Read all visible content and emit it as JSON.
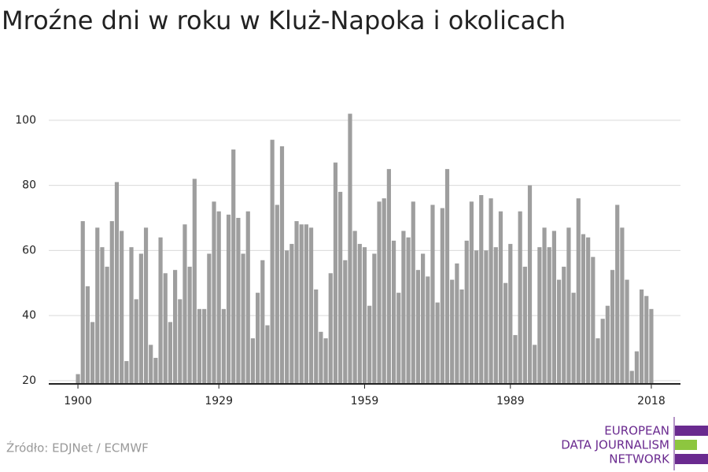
{
  "chart_data": {
    "type": "bar",
    "title": "Mroźne dni w roku w Kluż-Napoka i okolicach",
    "x": [
      1900,
      1901,
      1902,
      1903,
      1904,
      1905,
      1906,
      1907,
      1908,
      1909,
      1910,
      1911,
      1912,
      1913,
      1914,
      1915,
      1916,
      1917,
      1918,
      1919,
      1920,
      1921,
      1922,
      1923,
      1924,
      1925,
      1926,
      1927,
      1928,
      1929,
      1930,
      1931,
      1932,
      1933,
      1934,
      1935,
      1936,
      1937,
      1938,
      1939,
      1940,
      1941,
      1942,
      1943,
      1944,
      1945,
      1946,
      1947,
      1948,
      1949,
      1950,
      1951,
      1952,
      1953,
      1954,
      1955,
      1956,
      1957,
      1958,
      1959,
      1960,
      1961,
      1962,
      1963,
      1964,
      1965,
      1966,
      1967,
      1968,
      1969,
      1970,
      1971,
      1972,
      1973,
      1974,
      1975,
      1976,
      1977,
      1978,
      1979,
      1980,
      1981,
      1982,
      1983,
      1984,
      1985,
      1986,
      1987,
      1988,
      1989,
      1990,
      1991,
      1992,
      1993,
      1994,
      1995,
      1996,
      1997,
      1998,
      1999,
      2000,
      2001,
      2002,
      2003,
      2004,
      2005,
      2006,
      2007,
      2008,
      2009,
      2010,
      2011,
      2012,
      2013,
      2014,
      2015,
      2016,
      2017,
      2018
    ],
    "values": [
      22,
      69,
      49,
      38,
      67,
      61,
      55,
      69,
      81,
      66,
      26,
      61,
      45,
      59,
      67,
      31,
      27,
      64,
      53,
      38,
      54,
      45,
      68,
      55,
      82,
      42,
      42,
      59,
      75,
      72,
      42,
      71,
      91,
      70,
      59,
      72,
      33,
      47,
      57,
      37,
      94,
      74,
      92,
      60,
      62,
      69,
      68,
      68,
      67,
      48,
      35,
      33,
      53,
      87,
      78,
      57,
      102,
      66,
      62,
      61,
      43,
      59,
      75,
      76,
      85,
      63,
      47,
      66,
      64,
      75,
      54,
      59,
      52,
      74,
      44,
      73,
      85,
      51,
      56,
      48,
      63,
      75,
      60,
      77,
      60,
      76,
      61,
      72,
      50,
      62,
      34,
      72,
      55,
      80,
      31,
      61,
      67,
      61,
      66,
      51,
      55,
      67,
      47,
      76,
      65,
      64,
      58,
      33,
      39,
      43,
      54,
      74,
      67,
      51,
      23,
      29,
      48,
      46,
      42
    ],
    "color": "#9e9e9e",
    "xlim": [
      1894,
      2024
    ],
    "xticks": [
      1900,
      1929,
      1959,
      1989,
      2018
    ],
    "ylim": [
      19,
      106
    ],
    "yticks": [
      20,
      40,
      60,
      80,
      100
    ],
    "grid": true,
    "source": "Źródło: EDJNet / ECMWF",
    "logo": [
      "EUROPEAN",
      "DATA JOURNALISM",
      "NETWORK"
    ]
  }
}
